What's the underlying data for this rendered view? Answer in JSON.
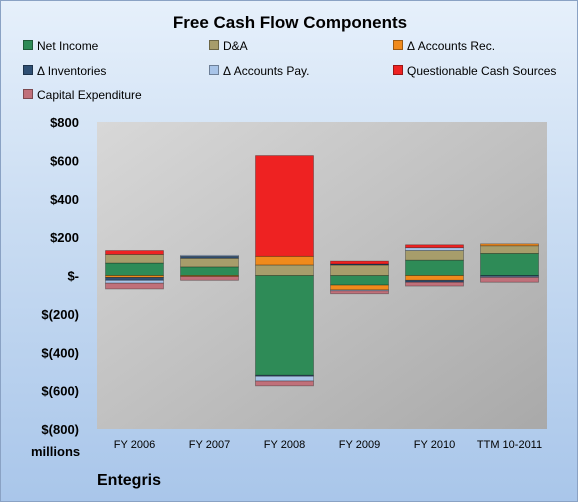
{
  "chart_data": {
    "type": "bar",
    "stacked": true,
    "title": "Free Cash Flow Components",
    "categories": [
      "FY 2006",
      "FY 2007",
      "FY 2008",
      "FY 2009",
      "FY 2010",
      "TTM 10-2011"
    ],
    "series": [
      {
        "name": "Net Income",
        "color": "#2e8b57",
        "values": [
          65,
          45,
          -520,
          -50,
          80,
          115
        ]
      },
      {
        "name": "D&A",
        "color": "#a79d6b",
        "values": [
          45,
          45,
          55,
          55,
          50,
          40
        ]
      },
      {
        "name": "Δ Accounts Rec.",
        "color": "#f08a1c",
        "values": [
          -10,
          -5,
          45,
          -25,
          -25,
          10
        ]
      },
      {
        "name": "Δ Inventories",
        "color": "#2f4f73",
        "values": [
          -15,
          10,
          -5,
          5,
          -10,
          -5
        ]
      },
      {
        "name": "Δ Accounts Pay.",
        "color": "#a8c4e8",
        "values": [
          -15,
          5,
          -25,
          -5,
          15,
          -5
        ]
      },
      {
        "name": "Questionable Cash Sources",
        "color": "#ee2222",
        "values": [
          20,
          0,
          525,
          15,
          15,
          0
        ]
      },
      {
        "name": "Capital Expenditure",
        "color": "#c0707a",
        "values": [
          -30,
          -20,
          -25,
          -15,
          -20,
          -25
        ]
      }
    ],
    "ylim": [
      -800,
      800
    ],
    "yticks": [
      800,
      600,
      400,
      200,
      0,
      -200,
      -400,
      -600,
      -800
    ],
    "ytick_labels": [
      "$800",
      "$600",
      "$400",
      "$200",
      "$-",
      "$(200)",
      "$(400)",
      "$(600)",
      "$(800)"
    ],
    "ylabel": "millions",
    "xlabel": "",
    "grid": false,
    "legend_position": "top"
  },
  "company": "Entegris"
}
